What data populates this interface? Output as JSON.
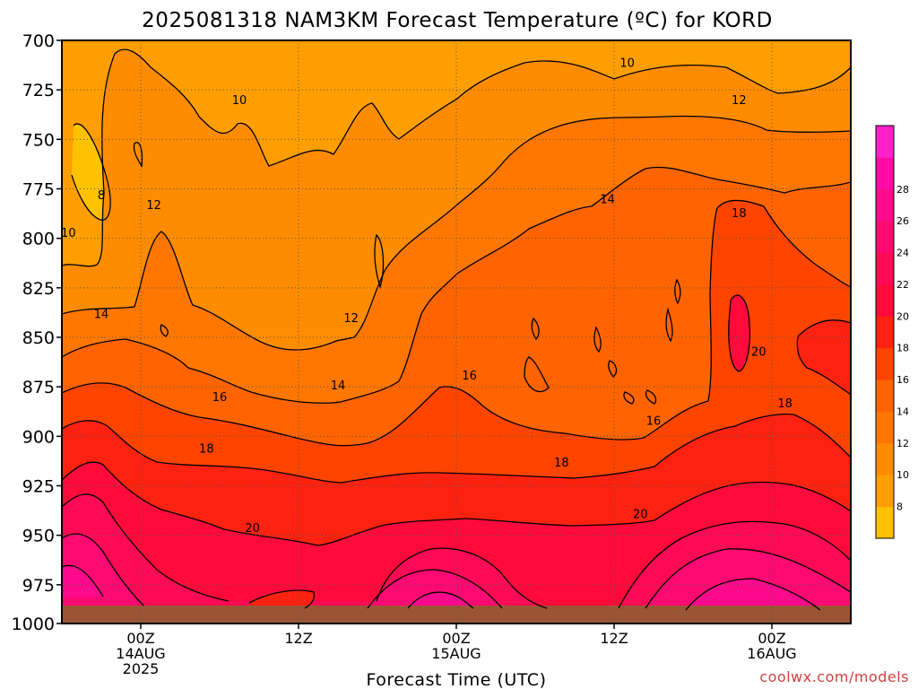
{
  "chart_data": {
    "type": "heatmap",
    "title": "2025081318 NAM3KM Forecast Temperature (ºC) for KORD",
    "xlabel": "Forecast Time (UTC)",
    "ylabel": "",
    "x_ticks": [
      {
        "hour": 6,
        "lines": [
          "00Z",
          "14AUG",
          "2025"
        ]
      },
      {
        "hour": 18,
        "lines": [
          "12Z"
        ]
      },
      {
        "hour": 30,
        "lines": [
          "00Z",
          "15AUG"
        ]
      },
      {
        "hour": 42,
        "lines": [
          "12Z"
        ]
      },
      {
        "hour": 54,
        "lines": [
          "00Z",
          "16AUG"
        ]
      }
    ],
    "xlim": [
      0,
      60
    ],
    "y_ticks": [
      "700",
      "725",
      "750",
      "775",
      "800",
      "825",
      "850",
      "875",
      "900",
      "925",
      "950",
      "975",
      "1000"
    ],
    "ylim": [
      700,
      1000
    ],
    "surface_pressure_mb": 990,
    "colorbar": {
      "labels": [
        "8",
        "10",
        "12",
        "14",
        "16",
        "18",
        "20",
        "22",
        "24",
        "26",
        "28"
      ],
      "colors": [
        "#ffc200",
        "#ff9e00",
        "#ff8c00",
        "#ff7700",
        "#ff6400",
        "#ff4400",
        "#ff2210",
        "#ff0a3a",
        "#ff0a55",
        "#ff0a72",
        "#ff0a8c",
        "#ff0aa6",
        "#ff20c8"
      ]
    },
    "grid": true,
    "contour_labels": [
      {
        "text": "10",
        "hour": 0.5,
        "p": 797
      },
      {
        "text": "8",
        "hour": 3,
        "p": 778
      },
      {
        "text": "12",
        "hour": 7,
        "p": 783
      },
      {
        "text": "10",
        "hour": 13.5,
        "p": 730
      },
      {
        "text": "14",
        "hour": 3,
        "p": 838
      },
      {
        "text": "16",
        "hour": 12,
        "p": 880
      },
      {
        "text": "18",
        "hour": 11,
        "p": 906
      },
      {
        "text": "12",
        "hour": 22,
        "p": 840
      },
      {
        "text": "14",
        "hour": 21,
        "p": 874
      },
      {
        "text": "20",
        "hour": 14.5,
        "p": 946
      },
      {
        "text": "16",
        "hour": 31,
        "p": 869
      },
      {
        "text": "18",
        "hour": 38,
        "p": 913
      },
      {
        "text": "10",
        "hour": 43,
        "p": 711
      },
      {
        "text": "14",
        "hour": 41.5,
        "p": 780
      },
      {
        "text": "12",
        "hour": 51.5,
        "p": 730
      },
      {
        "text": "18",
        "hour": 51.5,
        "p": 787
      },
      {
        "text": "16",
        "hour": 45,
        "p": 892
      },
      {
        "text": "20",
        "hour": 53,
        "p": 857
      },
      {
        "text": "18",
        "hour": 55,
        "p": 883
      },
      {
        "text": "20",
        "hour": 44,
        "p": 939
      }
    ]
  },
  "watermark": "coolwx.com/models"
}
